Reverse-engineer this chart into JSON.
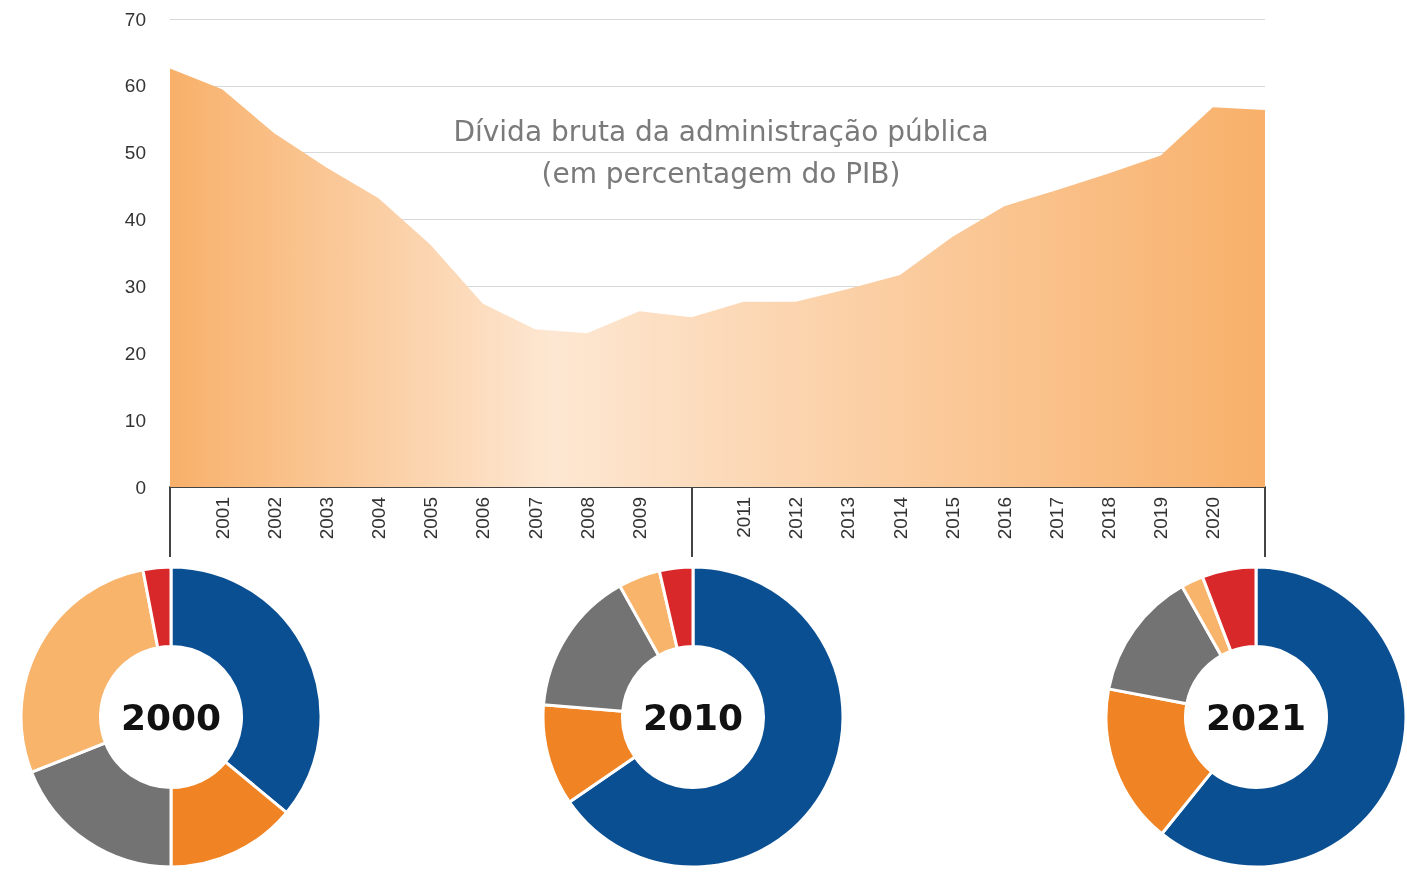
{
  "chart_data": [
    {
      "type": "area",
      "title": "Dívida bruta da administração pública",
      "subtitle": "(em percentagem do PIB)",
      "categories": [
        null,
        "2001",
        "2002",
        "2003",
        "2004",
        "2005",
        "2006",
        "2007",
        "2008",
        "2009",
        null,
        "2011",
        "2012",
        "2013",
        "2014",
        "2015",
        "2016",
        "2017",
        "2018",
        "2019",
        "2020",
        null
      ],
      "values": [
        62.6,
        59.5,
        52.9,
        47.8,
        43.2,
        36.2,
        27.4,
        23.6,
        23.0,
        26.3,
        25.4,
        27.7,
        27.7,
        29.6,
        31.7,
        37.4,
        42.0,
        44.4,
        46.9,
        49.6,
        56.8,
        56.4
      ],
      "color": "#f8b06a",
      "ylim": [
        0,
        70
      ],
      "yticks": [
        0,
        10,
        20,
        30,
        40,
        50,
        60,
        70
      ],
      "grid": "y"
    },
    {
      "type": "donut",
      "title": "2000",
      "categories": [
        null,
        null,
        null,
        null,
        null
      ],
      "values": [
        36,
        14,
        19,
        28,
        3
      ],
      "colors": [
        "#0b4f93",
        "#f08424",
        "#737373",
        "#f9b46c",
        "#d9282a"
      ]
    },
    {
      "type": "donut",
      "title": "2010",
      "categories": [
        null,
        null,
        null,
        null,
        null
      ],
      "values": [
        65.4,
        10.9,
        15.6,
        4.5,
        3.6
      ],
      "colors": [
        "#0b4f93",
        "#f08424",
        "#737373",
        "#f9b46c",
        "#d9282a"
      ]
    },
    {
      "type": "donut",
      "title": "2021",
      "categories": [
        null,
        null,
        null,
        null,
        null
      ],
      "values": [
        60.8,
        17.2,
        13.8,
        2.4,
        5.8
      ],
      "colors": [
        "#0b4f93",
        "#f08424",
        "#737373",
        "#f9b46c",
        "#d9282a"
      ]
    }
  ]
}
